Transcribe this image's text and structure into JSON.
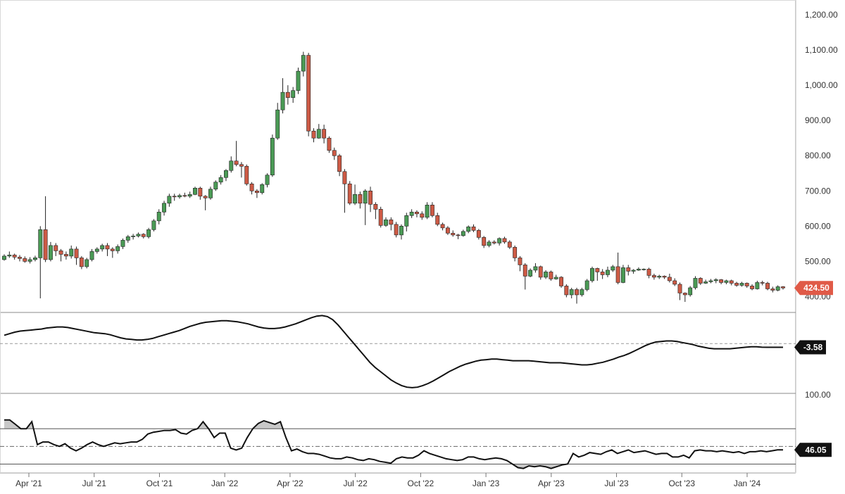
{
  "chart_data": [
    {
      "type": "candlestick",
      "panel": "price",
      "y_ticks": [
        "1,200.00",
        "1,100.00",
        "1,000.00",
        "900.00",
        "800.00",
        "700.00",
        "600.00",
        "500.00",
        "400.00"
      ],
      "y_tick_values": [
        1200,
        1100,
        1000,
        900,
        800,
        700,
        600,
        500,
        400
      ],
      "ylim": [
        355,
        1232
      ],
      "x_ticks": [
        "Apr '21",
        "Jul '21",
        "Oct '21",
        "Jan '22",
        "Apr '22",
        "Jul '22",
        "Oct '22",
        "Jan '23",
        "Apr '23",
        "Jul '23",
        "Oct '23",
        "Jan '24"
      ],
      "last_price_label": "424.50",
      "last_price": 424.5,
      "up_color": "#4a9a55",
      "down_color": "#cd5a45",
      "last_price_color": "#e05a47",
      "candles": [
        [
          505,
          515,
          502,
          520
        ],
        [
          515,
          518,
          510,
          528
        ],
        [
          518,
          512,
          505,
          522
        ],
        [
          512,
          508,
          500,
          518
        ],
        [
          508,
          500,
          496,
          514
        ],
        [
          500,
          505,
          494,
          512
        ],
        [
          505,
          510,
          500,
          516
        ],
        [
          510,
          590,
          395,
          600
        ],
        [
          590,
          505,
          498,
          685
        ],
        [
          505,
          545,
          500,
          555
        ],
        [
          545,
          530,
          515,
          552
        ],
        [
          530,
          520,
          500,
          535
        ],
        [
          520,
          515,
          505,
          528
        ],
        [
          515,
          535,
          508,
          545
        ],
        [
          535,
          510,
          490,
          542
        ],
        [
          510,
          485,
          478,
          515
        ],
        [
          485,
          505,
          480,
          510
        ],
        [
          505,
          528,
          500,
          535
        ],
        [
          528,
          535,
          522,
          540
        ],
        [
          535,
          545,
          528,
          550
        ],
        [
          545,
          535,
          515,
          552
        ],
        [
          535,
          530,
          510,
          540
        ],
        [
          530,
          542,
          522,
          548
        ],
        [
          542,
          560,
          535,
          565
        ],
        [
          560,
          570,
          553,
          575
        ],
        [
          570,
          572,
          562,
          578
        ],
        [
          572,
          577,
          568,
          582
        ],
        [
          577,
          570,
          565,
          580
        ],
        [
          570,
          590,
          565,
          595
        ],
        [
          590,
          615,
          585,
          620
        ],
        [
          615,
          640,
          605,
          648
        ],
        [
          640,
          665,
          630,
          672
        ],
        [
          665,
          685,
          655,
          692
        ],
        [
          685,
          683,
          672,
          692
        ],
        [
          683,
          687,
          678,
          692
        ],
        [
          687,
          685,
          682,
          695
        ],
        [
          685,
          690,
          680,
          698
        ],
        [
          690,
          708,
          688,
          712
        ],
        [
          708,
          685,
          675,
          712
        ],
        [
          685,
          680,
          645,
          688
        ],
        [
          680,
          705,
          675,
          712
        ],
        [
          705,
          725,
          700,
          730
        ],
        [
          725,
          738,
          718,
          745
        ],
        [
          738,
          758,
          728,
          762
        ],
        [
          758,
          785,
          752,
          798
        ],
        [
          785,
          775,
          770,
          842
        ],
        [
          775,
          770,
          738,
          782
        ],
        [
          770,
          720,
          715,
          775
        ],
        [
          720,
          700,
          690,
          725
        ],
        [
          700,
          695,
          680,
          705
        ],
        [
          695,
          718,
          690,
          722
        ],
        [
          718,
          745,
          710,
          750
        ],
        [
          745,
          850,
          740,
          860
        ],
        [
          850,
          930,
          845,
          950
        ],
        [
          930,
          980,
          920,
          1020
        ],
        [
          980,
          965,
          945,
          1000
        ],
        [
          965,
          985,
          950,
          995
        ],
        [
          985,
          1040,
          975,
          1050
        ],
        [
          1040,
          1085,
          1025,
          1095
        ],
        [
          1085,
          870,
          855,
          1092
        ],
        [
          870,
          850,
          838,
          878
        ],
        [
          850,
          875,
          848,
          890
        ],
        [
          875,
          850,
          835,
          888
        ],
        [
          850,
          815,
          808,
          855
        ],
        [
          815,
          800,
          788,
          823
        ],
        [
          800,
          755,
          742,
          805
        ],
        [
          755,
          720,
          638,
          762
        ],
        [
          720,
          665,
          660,
          728
        ],
        [
          665,
          690,
          660,
          718
        ],
        [
          690,
          665,
          650,
          698
        ],
        [
          665,
          700,
          603,
          705
        ],
        [
          700,
          662,
          640,
          712
        ],
        [
          662,
          648,
          620,
          668
        ],
        [
          648,
          602,
          596,
          655
        ],
        [
          602,
          618,
          598,
          625
        ],
        [
          618,
          605,
          588,
          625
        ],
        [
          605,
          575,
          568,
          612
        ],
        [
          575,
          600,
          562,
          605
        ],
        [
          600,
          630,
          585,
          638
        ],
        [
          630,
          640,
          623,
          648
        ],
        [
          640,
          635,
          625,
          645
        ],
        [
          635,
          625,
          618,
          642
        ],
        [
          625,
          660,
          620,
          668
        ],
        [
          660,
          630,
          625,
          668
        ],
        [
          630,
          605,
          600,
          638
        ],
        [
          605,
          595,
          588,
          610
        ],
        [
          595,
          580,
          575,
          600
        ],
        [
          580,
          575,
          570,
          588
        ],
        [
          575,
          573,
          563,
          578
        ],
        [
          573,
          585,
          570,
          590
        ],
        [
          585,
          598,
          580,
          602
        ],
        [
          598,
          588,
          583,
          605
        ],
        [
          588,
          568,
          562,
          592
        ],
        [
          568,
          545,
          538,
          572
        ],
        [
          545,
          555,
          540,
          560
        ],
        [
          555,
          552,
          548,
          560
        ],
        [
          552,
          565,
          545,
          568
        ],
        [
          565,
          555,
          550,
          570
        ],
        [
          555,
          540,
          535,
          560
        ],
        [
          540,
          510,
          500,
          545
        ],
        [
          510,
          490,
          472,
          515
        ],
        [
          490,
          458,
          420,
          495
        ],
        [
          458,
          475,
          455,
          480
        ],
        [
          475,
          485,
          468,
          495
        ],
        [
          485,
          455,
          448,
          488
        ],
        [
          455,
          470,
          450,
          475
        ],
        [
          470,
          450,
          445,
          474
        ],
        [
          450,
          455,
          448,
          462
        ],
        [
          455,
          430,
          425,
          458
        ],
        [
          430,
          405,
          398,
          435
        ],
        [
          405,
          420,
          395,
          425
        ],
        [
          420,
          405,
          380,
          425
        ],
        [
          405,
          420,
          400,
          425
        ],
        [
          420,
          445,
          415,
          450
        ],
        [
          445,
          480,
          440,
          485
        ],
        [
          480,
          470,
          445,
          482
        ],
        [
          470,
          462,
          450,
          478
        ],
        [
          462,
          475,
          455,
          485
        ],
        [
          475,
          485,
          470,
          490
        ],
        [
          485,
          440,
          435,
          525
        ],
        [
          440,
          482,
          438,
          490
        ],
        [
          482,
          472,
          460,
          490
        ],
        [
          472,
          475,
          465,
          478
        ],
        [
          475,
          478,
          473,
          483
        ],
        [
          478,
          478,
          474,
          480
        ],
        [
          478,
          460,
          452,
          482
        ],
        [
          460,
          455,
          448,
          465
        ],
        [
          455,
          458,
          450,
          462
        ],
        [
          458,
          455,
          450,
          460
        ],
        [
          455,
          445,
          440,
          465
        ],
        [
          445,
          435,
          430,
          452
        ],
        [
          435,
          410,
          390,
          440
        ],
        [
          410,
          405,
          385,
          412
        ],
        [
          405,
          425,
          400,
          430
        ],
        [
          425,
          452,
          420,
          458
        ],
        [
          452,
          438,
          433,
          455
        ],
        [
          438,
          442,
          436,
          448
        ],
        [
          442,
          445,
          438,
          450
        ],
        [
          445,
          448,
          438,
          452
        ],
        [
          448,
          440,
          435,
          450
        ],
        [
          440,
          445,
          435,
          448
        ],
        [
          445,
          438,
          432,
          448
        ],
        [
          438,
          432,
          428,
          442
        ],
        [
          432,
          438,
          428,
          442
        ],
        [
          438,
          430,
          425,
          440
        ],
        [
          430,
          422,
          418,
          435
        ],
        [
          422,
          440,
          420,
          445
        ],
        [
          440,
          438,
          432,
          445
        ],
        [
          438,
          422,
          418,
          442
        ],
        [
          422,
          418,
          412,
          428
        ],
        [
          418,
          428,
          415,
          432
        ],
        [
          428,
          424.5,
          420,
          430
        ]
      ]
    },
    {
      "type": "line",
      "panel": "oscillator",
      "value_label": "-3.58",
      "last_value": -3.58,
      "zero_line": 0,
      "ylim": [
        -48,
        30
      ],
      "values": [
        8,
        9.5,
        11,
        12,
        12.5,
        13,
        13.5,
        14,
        15,
        15.5,
        16,
        16,
        15.5,
        14.5,
        13.5,
        12.5,
        11.5,
        10.5,
        10,
        9.5,
        8.5,
        7,
        5.5,
        4.5,
        4,
        3.5,
        3.5,
        4,
        5,
        6.5,
        8,
        9.5,
        11,
        12.5,
        14.5,
        16.5,
        18,
        19.5,
        20.5,
        21,
        21.5,
        22,
        22,
        21.5,
        21,
        20,
        19,
        17.5,
        16,
        15,
        14.5,
        14.5,
        15,
        16,
        17.5,
        19,
        21,
        23,
        25,
        26.5,
        27,
        26,
        23,
        18,
        12,
        6,
        0,
        -6,
        -12,
        -18,
        -23,
        -27,
        -31,
        -35,
        -38,
        -40.5,
        -42,
        -42.5,
        -42,
        -40.5,
        -38.5,
        -36,
        -33,
        -30,
        -27,
        -24.5,
        -22,
        -20,
        -18.5,
        -17,
        -16,
        -15.5,
        -15,
        -15,
        -15.5,
        -16,
        -16.5,
        -16.5,
        -16.5,
        -16.5,
        -17,
        -17.5,
        -18,
        -18.5,
        -18.5,
        -18.5,
        -19,
        -19.5,
        -20,
        -20.5,
        -20.5,
        -20,
        -19,
        -18,
        -16.5,
        -15,
        -13,
        -11.5,
        -9.5,
        -7,
        -4.5,
        -2,
        0,
        1.5,
        2,
        2.5,
        2.5,
        2,
        1,
        0,
        -1,
        -2.5,
        -3.5,
        -4.5,
        -5,
        -5,
        -5,
        -5,
        -4.5,
        -4,
        -3.5,
        -3,
        -3,
        -3.5,
        -3.6,
        -3.6,
        -3.58,
        -3.58
      ]
    },
    {
      "type": "line",
      "panel": "rsi",
      "y_ticks": [
        "100.00"
      ],
      "value_label": "46.05",
      "last_value": 46.05,
      "upper_band": 70,
      "lower_band": 30,
      "mid_line": 50,
      "ylim": [
        20,
        110
      ],
      "values": [
        80,
        80,
        75,
        70,
        70,
        78,
        52,
        55,
        55,
        52,
        50,
        53,
        48,
        45,
        48,
        52,
        55,
        52,
        50,
        52,
        54,
        53,
        54,
        55,
        55,
        58,
        64,
        66,
        67,
        68,
        68,
        69,
        65,
        64,
        68,
        70,
        78,
        70,
        60,
        65,
        65,
        48,
        46,
        48,
        60,
        70,
        76,
        79,
        77,
        75,
        78,
        60,
        45,
        47,
        44,
        42,
        42,
        41,
        39,
        37,
        36,
        36,
        38,
        37,
        35,
        34,
        36,
        35,
        33,
        32,
        31,
        36,
        38,
        37,
        37,
        40,
        45,
        42,
        40,
        38,
        36,
        35,
        34,
        35,
        38,
        38,
        36,
        35,
        36,
        37,
        36,
        34,
        30,
        26,
        25,
        28,
        27,
        28,
        27,
        25,
        27,
        29,
        30,
        42,
        38,
        40,
        43,
        42,
        41,
        44,
        46,
        42,
        44,
        46,
        43,
        44,
        45,
        43,
        41,
        42,
        42,
        38,
        38,
        40,
        37,
        45,
        46,
        45,
        45,
        44,
        45,
        44,
        43,
        44,
        42,
        44,
        44,
        45,
        44,
        45,
        46.05,
        46.05
      ]
    }
  ]
}
